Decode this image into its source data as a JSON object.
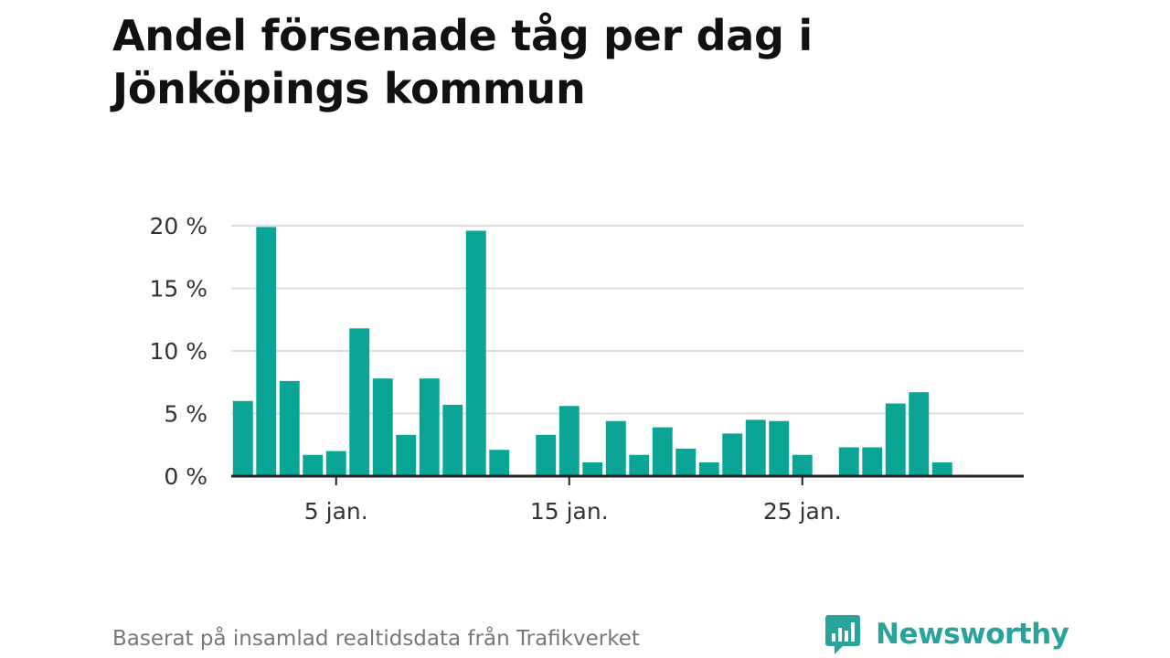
{
  "chart_data": {
    "type": "bar",
    "title": "Andel försenade tåg per dag i Jönköpings kommun",
    "xlabel": "",
    "ylabel": "",
    "x": [
      1,
      2,
      3,
      4,
      5,
      6,
      7,
      8,
      9,
      10,
      11,
      12,
      13,
      14,
      15,
      16,
      17,
      18,
      19,
      20,
      21,
      22,
      23,
      24,
      25,
      26,
      27,
      28,
      29,
      30,
      31
    ],
    "values": [
      6.0,
      19.9,
      7.6,
      1.7,
      2.0,
      11.8,
      7.8,
      3.3,
      7.8,
      5.7,
      19.6,
      2.1,
      0,
      3.3,
      5.6,
      1.1,
      4.4,
      1.7,
      3.9,
      2.2,
      1.1,
      3.4,
      4.5,
      4.4,
      1.7,
      0,
      2.3,
      2.3,
      5.8,
      6.7,
      1.1
    ],
    "ylim": [
      0,
      20
    ],
    "xlim": [
      0.5,
      34.5
    ],
    "y_ticks": [
      {
        "value": 0,
        "label": "0 %"
      },
      {
        "value": 5,
        "label": "5 %"
      },
      {
        "value": 10,
        "label": "10 %"
      },
      {
        "value": 15,
        "label": "15 %"
      },
      {
        "value": 20,
        "label": "20 %"
      }
    ],
    "x_ticks": [
      {
        "value": 5,
        "label": "5 jan."
      },
      {
        "value": 15,
        "label": "15 jan."
      },
      {
        "value": 25,
        "label": "25 jan."
      }
    ],
    "bar_color": "#0ba597",
    "grid": true
  },
  "footer": {
    "source": "Baserat på insamlad realtidsdata från Trafikverket"
  },
  "logo": {
    "text": "Newsworthy",
    "color": "#2aa39b",
    "icon": "newsworthy-chart-icon"
  }
}
